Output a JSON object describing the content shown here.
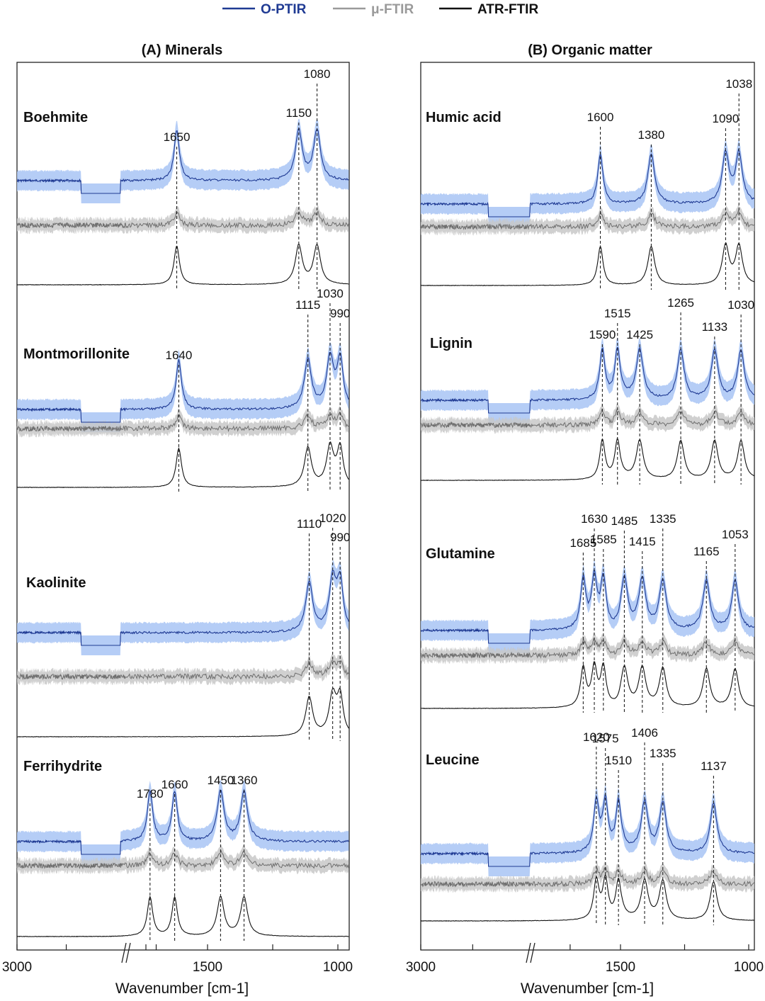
{
  "legend": {
    "placement": "top-center",
    "items": [
      {
        "label": "O-PTIR",
        "color": "#1f3a93"
      },
      {
        "label": "μ-FTIR",
        "color": "#9a9a9a"
      },
      {
        "label": "ATR-FTIR",
        "color": "#111111"
      }
    ]
  },
  "colors": {
    "optir_line": "#1f3a93",
    "optir_band": "#a8c4f5",
    "mufir_line": "#6f6f6f",
    "mufir_band": "#c8c8c8",
    "atr_line": "#111111"
  },
  "chart_data": [
    {
      "type": "line",
      "title": "(A) Minerals",
      "xlabel": "Wavenumber [cm-1]",
      "x_reversed": true,
      "axis_break": true,
      "xticks": [
        3000,
        1500,
        1000
      ],
      "xlim": [
        3000,
        950
      ],
      "samples": [
        {
          "name": "Boehmite",
          "peaks": [
            {
              "label": "1650",
              "x": 1650
            },
            {
              "label": "1150",
              "x": 1150
            },
            {
              "label": "1080",
              "x": 1080
            }
          ]
        },
        {
          "name": "Montmorillonite",
          "peaks": [
            {
              "label": "1640",
              "x": 1640
            },
            {
              "label": "1115",
              "x": 1115
            },
            {
              "label": "1030",
              "x": 1030
            },
            {
              "label": "990",
              "x": 990
            }
          ]
        },
        {
          "name": "Kaolinite",
          "peaks": [
            {
              "label": "1110",
              "x": 1110
            },
            {
              "label": "1020",
              "x": 1020
            },
            {
              "label": "990",
              "x": 990
            }
          ]
        },
        {
          "name": "Ferrihydrite",
          "peaks": [
            {
              "label": "1780",
              "x": 1780
            },
            {
              "label": "1660",
              "x": 1660
            },
            {
              "label": "1450",
              "x": 1450
            },
            {
              "label": "1360",
              "x": 1360
            }
          ]
        }
      ]
    },
    {
      "type": "line",
      "title": "(B) Organic matter",
      "xlabel": "Wavenumber [cm-1]",
      "x_reversed": true,
      "axis_break": true,
      "xticks": [
        3000,
        1500,
        1000
      ],
      "xlim": [
        3000,
        980
      ],
      "samples": [
        {
          "name": "Humic acid",
          "peaks": [
            {
              "label": "1600",
              "x": 1600
            },
            {
              "label": "1380",
              "x": 1380
            },
            {
              "label": "1090",
              "x": 1090
            },
            {
              "label": "1038",
              "x": 1038
            }
          ]
        },
        {
          "name": "Lignin",
          "peaks": [
            {
              "label": "1590",
              "x": 1590
            },
            {
              "label": "1515",
              "x": 1515
            },
            {
              "label": "1425",
              "x": 1425
            },
            {
              "label": "1265",
              "x": 1265
            },
            {
              "label": "1133",
              "x": 1133
            },
            {
              "label": "1030",
              "x": 1030
            }
          ]
        },
        {
          "name": "Glutamine",
          "peaks": [
            {
              "label": "1685",
              "x": 1685
            },
            {
              "label": "1630",
              "x": 1630
            },
            {
              "label": "1585",
              "x": 1585
            },
            {
              "label": "1485",
              "x": 1485
            },
            {
              "label": "1415",
              "x": 1415
            },
            {
              "label": "1335",
              "x": 1335
            },
            {
              "label": "1165",
              "x": 1165
            },
            {
              "label": "1053",
              "x": 1053
            }
          ]
        },
        {
          "name": "Leucine",
          "peaks": [
            {
              "label": "1620",
              "x": 1620
            },
            {
              "label": "1575",
              "x": 1575
            },
            {
              "label": "1510",
              "x": 1510
            },
            {
              "label": "1406",
              "x": 1406
            },
            {
              "label": "1335",
              "x": 1335
            },
            {
              "label": "1137",
              "x": 1137
            }
          ]
        }
      ]
    }
  ]
}
